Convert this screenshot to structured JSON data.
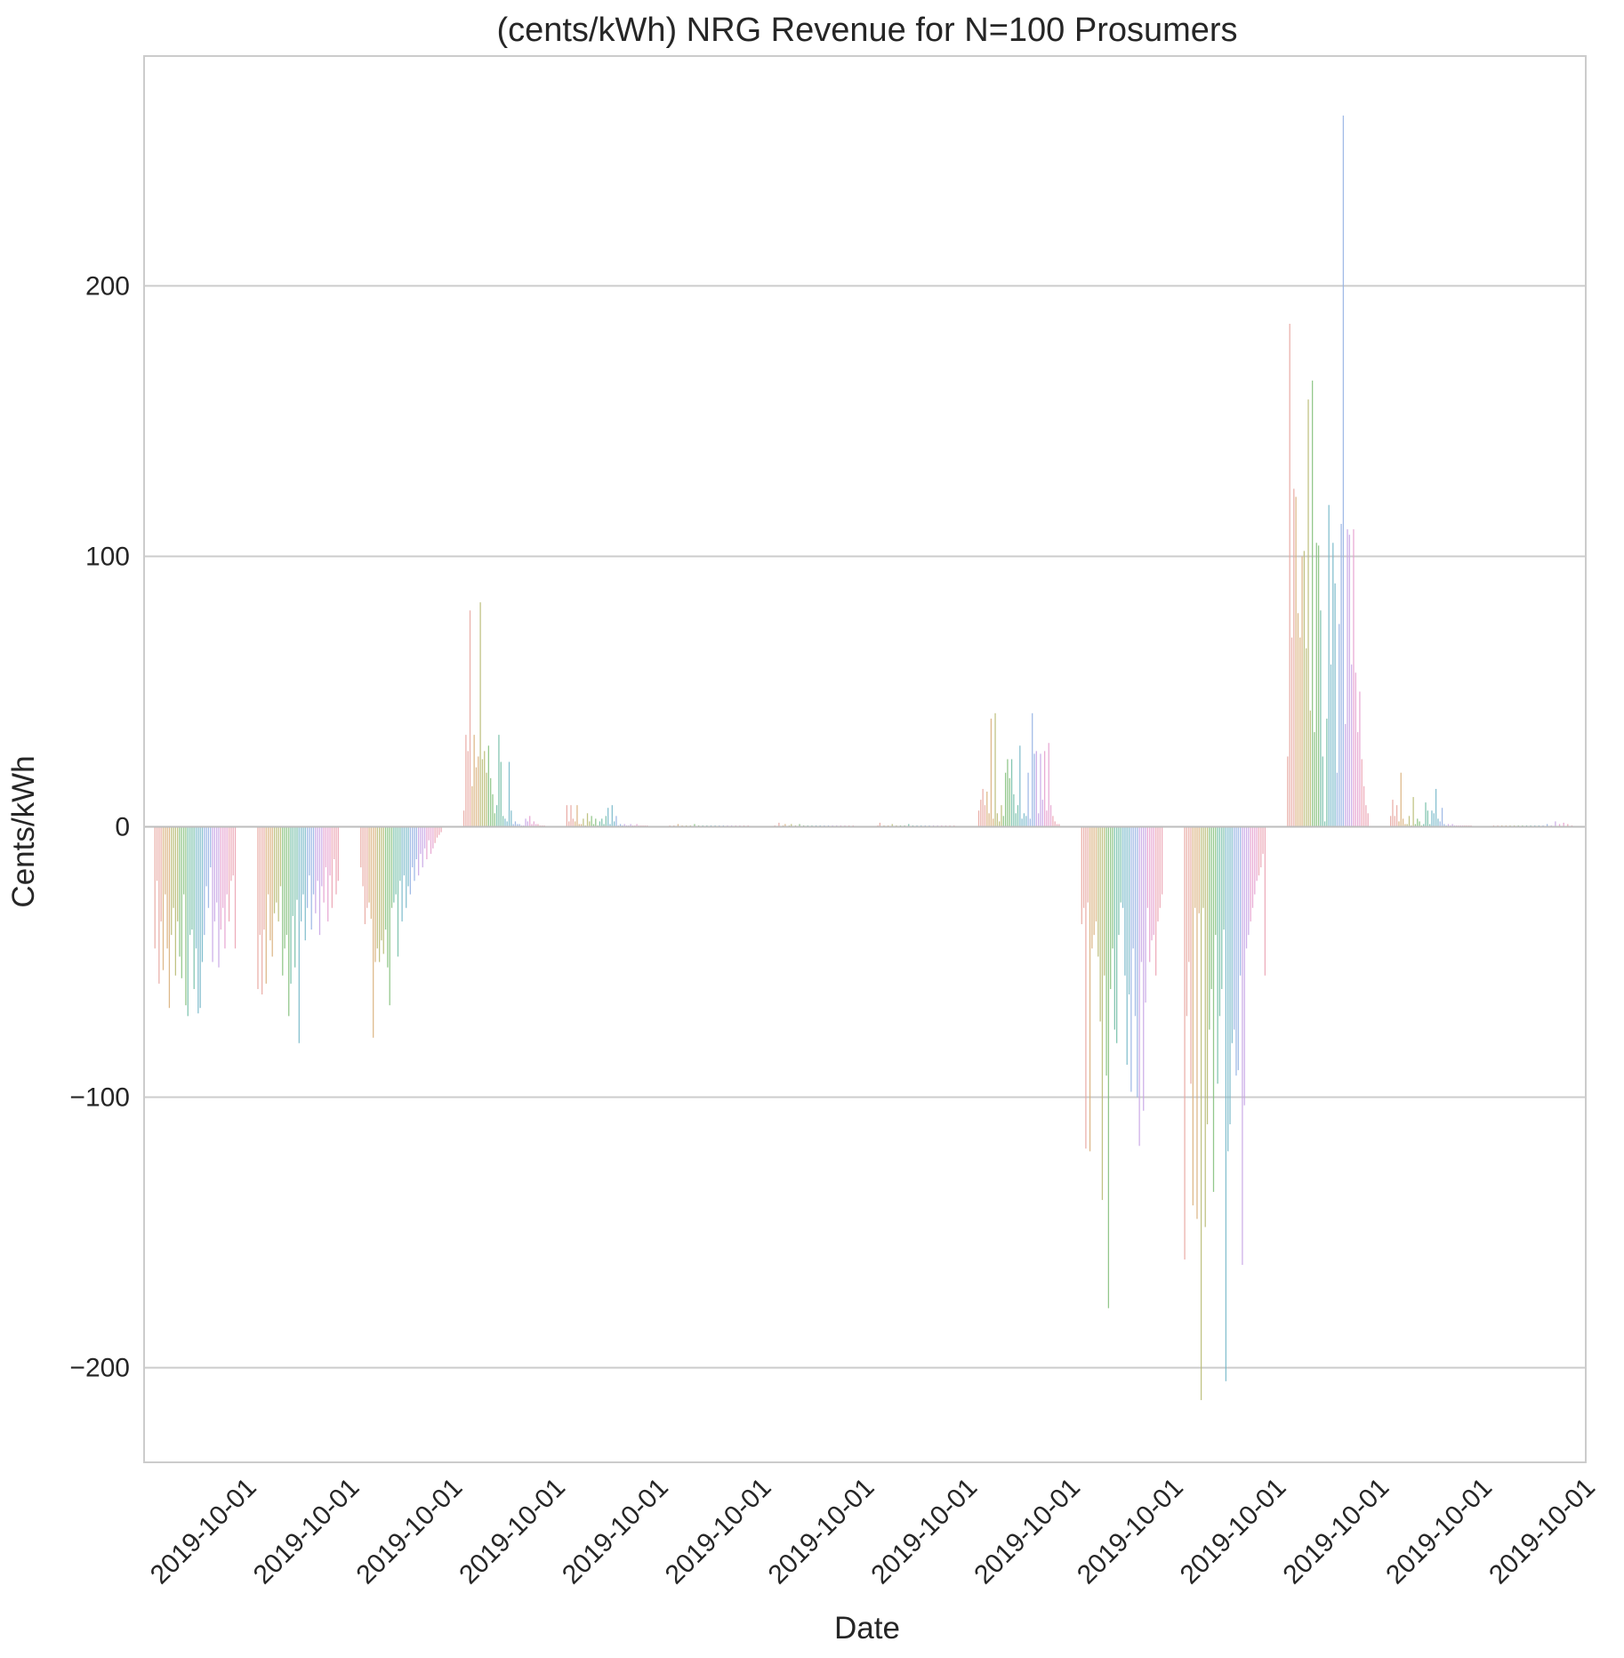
{
  "chart_data": {
    "type": "bar",
    "title": "(cents/kWh) NRG Revenue for N=100 Prosumers",
    "xlabel": "Date",
    "ylabel": "Cents/kWh",
    "ylim": [
      -235,
      285
    ],
    "yticks": [
      -200,
      -100,
      0,
      100,
      200
    ],
    "ytick_labels": [
      "−200",
      "−100",
      "0",
      "100",
      "200"
    ],
    "grid": true,
    "legend": "none",
    "categories": [
      "2019-10-01",
      "2019-10-01",
      "2019-10-01",
      "2019-10-01",
      "2019-10-01",
      "2019-10-01",
      "2019-10-01",
      "2019-10-01",
      "2019-10-01",
      "2019-10-01",
      "2019-10-01",
      "2019-10-01",
      "2019-10-01",
      "2019-10-01"
    ],
    "series_palette": [
      "#e8a7a1",
      "#d9b07c",
      "#b9bb76",
      "#86c17e",
      "#74bfa7",
      "#77b8c9",
      "#96b2e3",
      "#c8a6e6",
      "#e5a1cf",
      "#eba3b3"
    ],
    "groups": [
      {
        "label": "2019-10-01",
        "values": [
          -45,
          -20,
          -58,
          -35,
          -53,
          -25,
          -45,
          -67,
          -40,
          -30,
          -55,
          -35,
          -48,
          -56,
          -25,
          -66,
          -70,
          -40,
          -38,
          -60,
          -45,
          -69,
          -67,
          -50,
          -40,
          -22,
          -30,
          -15,
          -50,
          -35,
          -28,
          -52,
          -38,
          -30,
          -45,
          -25,
          -35,
          -20,
          -18,
          -45
        ]
      },
      {
        "label": "2019-10-01",
        "values": [
          -60,
          -40,
          -62,
          -38,
          -58,
          -25,
          -42,
          -48,
          -32,
          -28,
          -35,
          -22,
          -55,
          -45,
          -40,
          -70,
          -58,
          -33,
          -52,
          -27,
          -80,
          -35,
          -25,
          -42,
          -30,
          -18,
          -38,
          -25,
          -32,
          -20,
          -40,
          -22,
          -28,
          -15,
          -35,
          -18,
          -30,
          -12,
          -25,
          -20
        ]
      },
      {
        "label": "2019-10-01",
        "values": [
          -15,
          -22,
          -36,
          -30,
          -28,
          -34,
          -78,
          -50,
          -45,
          -50,
          -42,
          -47,
          -38,
          -52,
          -66,
          -30,
          -28,
          -25,
          -48,
          -20,
          -35,
          -18,
          -30,
          -22,
          -25,
          -15,
          -20,
          -12,
          -18,
          -10,
          -15,
          -8,
          -12,
          -5,
          -10,
          -8,
          -6,
          -4,
          -3,
          -2
        ]
      },
      {
        "label": "2019-10-01",
        "values": [
          6,
          34,
          28,
          80,
          15,
          34,
          22,
          26,
          83,
          25,
          28,
          20,
          30,
          18,
          12,
          5,
          8,
          34,
          24,
          4,
          3,
          2,
          24,
          6,
          1,
          2,
          1,
          1,
          0.5,
          0.5,
          3,
          2,
          4,
          1,
          2,
          1,
          1,
          0.5,
          0.5,
          0.5
        ]
      },
      {
        "label": "2019-10-01",
        "values": [
          8,
          2,
          8,
          3,
          2,
          8,
          1,
          1,
          3,
          0.5,
          5,
          2,
          4,
          1,
          3,
          0.5,
          2,
          3,
          1,
          4,
          7,
          1,
          8,
          2,
          4,
          0.5,
          1,
          0.5,
          1,
          0.5,
          0.5,
          1,
          0.5,
          0.5,
          1,
          0.5,
          0.5,
          0.5,
          0.5,
          0.5
        ]
      },
      {
        "label": "2019-10-01",
        "values": [
          0.5,
          0.3,
          0.5,
          0.3,
          1,
          0.3,
          0.5,
          0.3,
          0.5,
          0.3,
          0.5,
          0.3,
          1,
          0.3,
          0.5,
          0.3,
          0.5,
          0.3,
          0.5,
          0.3,
          0.5,
          0.3,
          0.5,
          0.3,
          0.5,
          0.3,
          0.5,
          0.3,
          0.5,
          0.3,
          0.5,
          0.3,
          0.5,
          0.3,
          0.5,
          0.3,
          0.5,
          0.3,
          0.5,
          0.3
        ]
      },
      {
        "label": "2019-10-01",
        "values": [
          0.3,
          0.5,
          0.3,
          1.5,
          0.3,
          0.5,
          1,
          0.3,
          0.5,
          1,
          0.3,
          0.5,
          0.3,
          1,
          0.3,
          0.5,
          0.3,
          0.5,
          0.3,
          0.5,
          0.3,
          0.5,
          0.3,
          0.5,
          0.3,
          0.5,
          0.3,
          0.5,
          0.3,
          0.5,
          0.3,
          0.5,
          0.3,
          0.5,
          0.3,
          0.5,
          0.3,
          0.5,
          0.3,
          0.5
        ]
      },
      {
        "label": "2019-10-01",
        "values": [
          0.3,
          0.5,
          1.5,
          0.3,
          0.5,
          0.3,
          0.5,
          0.3,
          1,
          0.3,
          0.5,
          0.3,
          0.5,
          0.3,
          0.5,
          0.3,
          1,
          0.3,
          0.5,
          0.3,
          0.5,
          0.3,
          0.5,
          0.3,
          0.5,
          0.3,
          0.5,
          0.3,
          0.5,
          0.3,
          0.5,
          0.3,
          0.5,
          0.3,
          0.5,
          0.3,
          0.5,
          0.3,
          0.5,
          0.3
        ]
      },
      {
        "label": "2019-10-01",
        "values": [
          6,
          10,
          14,
          8,
          13,
          5,
          40,
          3,
          42,
          5,
          2,
          8,
          4,
          20,
          25,
          18,
          25,
          12,
          5,
          8,
          30,
          3,
          5,
          4,
          20,
          3,
          42,
          27,
          28,
          5,
          27,
          10,
          28,
          6,
          31,
          8,
          4,
          2,
          1,
          1
        ]
      },
      {
        "label": "2019-10-01",
        "values": [
          -36,
          -30,
          -119,
          -28,
          -120,
          -45,
          -40,
          -35,
          -48,
          -72,
          -138,
          -55,
          -92,
          -178,
          -60,
          -45,
          -75,
          -80,
          -40,
          -28,
          -30,
          -55,
          -88,
          -62,
          -98,
          -45,
          -70,
          -100,
          -118,
          -50,
          -105,
          -65,
          -30,
          -50,
          -42,
          -40,
          -55,
          -35,
          -30,
          -25
        ]
      },
      {
        "label": "2019-10-01",
        "values": [
          -160,
          -70,
          -50,
          -95,
          -140,
          -30,
          -145,
          -32,
          -212,
          -30,
          -148,
          -110,
          -75,
          -60,
          -135,
          -40,
          -95,
          -70,
          -60,
          -38,
          -205,
          -120,
          -110,
          -80,
          -75,
          -92,
          -90,
          -55,
          -162,
          -103,
          -45,
          -40,
          -35,
          -30,
          -25,
          -20,
          -18,
          -15,
          -10,
          -55
        ]
      },
      {
        "label": "2019-10-01",
        "values": [
          26,
          186,
          70,
          125,
          122,
          79,
          70,
          100,
          102,
          66,
          158,
          43,
          165,
          35,
          105,
          104,
          80,
          26,
          2,
          40,
          119,
          60,
          105,
          90,
          20,
          75,
          112,
          263,
          38,
          110,
          108,
          60,
          110,
          57,
          35,
          50,
          25,
          15,
          8,
          5
        ]
      },
      {
        "label": "2019-10-01",
        "values": [
          4,
          10,
          4,
          8,
          2,
          20,
          3,
          1,
          1,
          4,
          0.5,
          11,
          1,
          3,
          2,
          0.5,
          1,
          9,
          6,
          1,
          6,
          5,
          14,
          3,
          2,
          7,
          1,
          0.5,
          1,
          0.5,
          1,
          0.5,
          0.5,
          0.5,
          0.5,
          0.5,
          0.5,
          0.5,
          0.5,
          0.5
        ]
      },
      {
        "label": "2019-10-01",
        "values": [
          0.5,
          0.3,
          0.5,
          0.3,
          0.5,
          0.3,
          0.5,
          0.3,
          0.5,
          0.3,
          0.5,
          0.3,
          0.5,
          0.3,
          0.5,
          0.3,
          0.5,
          0.3,
          0.5,
          0.3,
          0.5,
          0.3,
          0.5,
          0.3,
          0.5,
          0.3,
          1,
          0.3,
          0.5,
          0.3,
          2,
          0.3,
          1,
          0.3,
          1.5,
          0.3,
          1,
          0.3,
          0.5,
          0.3
        ]
      }
    ]
  }
}
